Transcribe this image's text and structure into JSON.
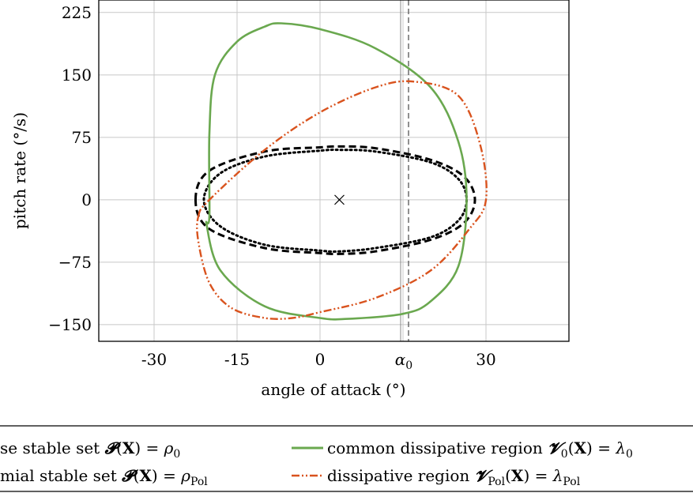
{
  "chart_data": {
    "type": "line",
    "xlabel": "angle of attack (°)",
    "ylabel": "pitch rate (°/s)",
    "xlim": [
      -40,
      45
    ],
    "ylim": [
      -170,
      240
    ],
    "x_ticks": [
      -30,
      -15,
      0,
      30
    ],
    "x_tick_labels": [
      "-30",
      "-15",
      "0",
      "30"
    ],
    "y_ticks": [
      225,
      150,
      75,
      0,
      -75,
      -150
    ],
    "y_tick_labels": [
      "225",
      "150",
      "75",
      "0",
      "−75",
      "−150"
    ],
    "grid": true,
    "alpha0": {
      "x": 16,
      "label": "α0"
    },
    "center_marker": {
      "x": 3.5,
      "y": 0
    },
    "series": [
      {
        "name": "se stable set 𝓟(X) = ρ0",
        "style": "dashed",
        "color": "#000000",
        "points": [
          [
            -22.5,
            0
          ],
          [
            -20,
            35
          ],
          [
            -10,
            58
          ],
          [
            0,
            63
          ],
          [
            3.5,
            64
          ],
          [
            10,
            62
          ],
          [
            20,
            48
          ],
          [
            26,
            28
          ],
          [
            28,
            0
          ],
          [
            26,
            -28
          ],
          [
            20,
            -48
          ],
          [
            10,
            -62
          ],
          [
            3.5,
            -65
          ],
          [
            0,
            -64
          ],
          [
            -10,
            -58
          ],
          [
            -20,
            -35
          ],
          [
            -22.5,
            0
          ]
        ]
      },
      {
        "name": "mial stable set 𝓟(X) = ρPol",
        "style": "dotted",
        "color": "#000000",
        "points": [
          [
            -21,
            0
          ],
          [
            -18,
            32
          ],
          [
            -10,
            52
          ],
          [
            0,
            59
          ],
          [
            3.5,
            60
          ],
          [
            10,
            58
          ],
          [
            20,
            45
          ],
          [
            25,
            25
          ],
          [
            26.5,
            0
          ],
          [
            25,
            -25
          ],
          [
            20,
            -45
          ],
          [
            10,
            -58
          ],
          [
            3.5,
            -62
          ],
          [
            0,
            -61
          ],
          [
            -10,
            -54
          ],
          [
            -18,
            -32
          ],
          [
            -21,
            0
          ]
        ]
      },
      {
        "name": "common dissipative region 𝓥0(X) = λ0",
        "style": "solid",
        "color": "#6aa84f",
        "points": [
          [
            -20,
            -20
          ],
          [
            -20,
            80
          ],
          [
            -19,
            150
          ],
          [
            -15,
            190
          ],
          [
            -10,
            208
          ],
          [
            -7,
            212
          ],
          [
            0,
            205
          ],
          [
            10,
            182
          ],
          [
            20,
            135
          ],
          [
            25,
            70
          ],
          [
            26.5,
            0
          ],
          [
            25,
            -80
          ],
          [
            20,
            -122
          ],
          [
            15,
            -137
          ],
          [
            5,
            -143
          ],
          [
            0,
            -142
          ],
          [
            -10,
            -128
          ],
          [
            -18,
            -85
          ],
          [
            -20.5,
            -30
          ],
          [
            -20,
            -20
          ]
        ]
      },
      {
        "name": "dissipative region 𝓥Pol(X) = λPol",
        "style": "dashdotdot",
        "color": "#d9531e",
        "points": [
          [
            -22,
            -20
          ],
          [
            -20,
            0
          ],
          [
            -10,
            60
          ],
          [
            0,
            105
          ],
          [
            10,
            135
          ],
          [
            17,
            142
          ],
          [
            25,
            125
          ],
          [
            29,
            65
          ],
          [
            30,
            0
          ],
          [
            27,
            -35
          ],
          [
            20,
            -85
          ],
          [
            10,
            -118
          ],
          [
            0,
            -135
          ],
          [
            -5,
            -142
          ],
          [
            -10,
            -142
          ],
          [
            -16,
            -130
          ],
          [
            -20,
            -100
          ],
          [
            -22,
            -50
          ],
          [
            -22,
            -20
          ]
        ]
      }
    ]
  }
}
